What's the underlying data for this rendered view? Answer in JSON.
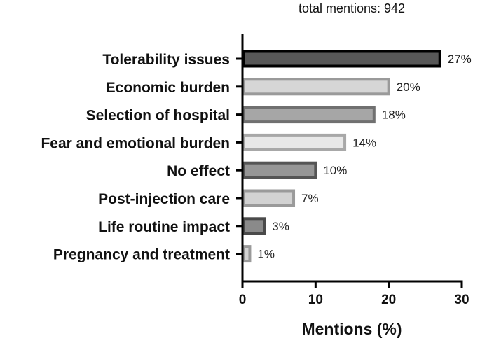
{
  "chart_data": {
    "type": "bar",
    "orientation": "horizontal",
    "annotation": "total mentions: 942",
    "xlabel": "Mentions (%)",
    "ylabel": "",
    "xlim": [
      0,
      30
    ],
    "xticks": [
      0,
      10,
      20,
      30
    ],
    "grid": false,
    "categories": [
      "Tolerability issues",
      "Economic burden",
      "Selection of hospital",
      "Fear and emotional burden",
      "No effect",
      "Post-injection care",
      "Life routine impact",
      "Pregnancy and treatment"
    ],
    "values": [
      27,
      20,
      18,
      14,
      10,
      7,
      3,
      1
    ],
    "value_labels": [
      "27%",
      "20%",
      "18%",
      "14%",
      "10%",
      "7%",
      "3%",
      "1%"
    ],
    "bar_fills": [
      "#585858",
      "#d6d6d6",
      "#a6a6a6",
      "#e8e8e8",
      "#969696",
      "#d2d2d2",
      "#8a8a8a",
      "#d4d4d4"
    ],
    "bar_strokes": [
      "#000000",
      "#9a9a9a",
      "#707070",
      "#a8a8a8",
      "#555555",
      "#9a9a9a",
      "#4a4a4a",
      "#9a9a9a"
    ]
  }
}
